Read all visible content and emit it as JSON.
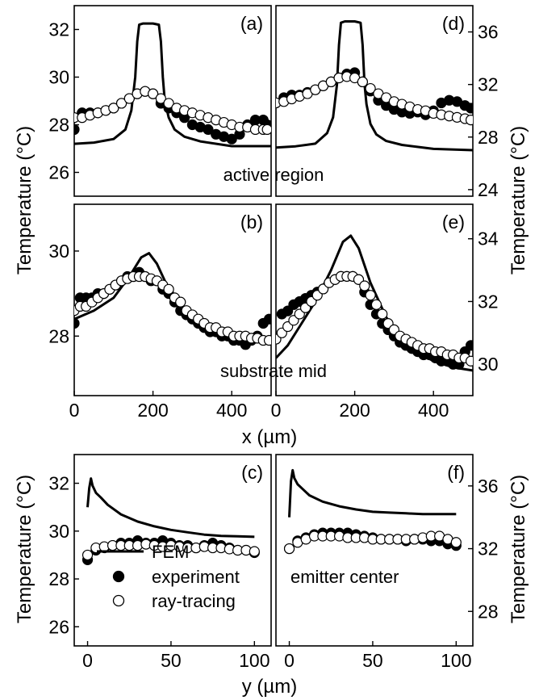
{
  "figure": {
    "x_title_top": "x (µm)",
    "x_title_bottom": "y (µm)",
    "y_title": "Temperature (°C)",
    "annotations": {
      "active_region": "active region",
      "substrate_mid": "substrate mid",
      "emitter_center": "emitter center"
    },
    "legend": {
      "fem": "FEM",
      "experiment": "experiment",
      "raytracing": "ray-tracing"
    }
  },
  "chart_data": [
    {
      "panel": "(a)",
      "type": "line",
      "xlim": [
        0,
        500
      ],
      "ylim": [
        25,
        33
      ],
      "y_ticks": [
        26,
        28,
        30,
        32
      ],
      "x_ticks": [],
      "grid": false,
      "series": [
        {
          "name": "FEM",
          "x": [
            0,
            50,
            100,
            130,
            145,
            155,
            160,
            165,
            175,
            200,
            215,
            220,
            225,
            230,
            240,
            255,
            280,
            320,
            400,
            500
          ],
          "y": [
            27.2,
            27.25,
            27.4,
            27.8,
            28.6,
            30.0,
            31.5,
            32.2,
            32.25,
            32.25,
            32.2,
            31.5,
            30.0,
            29.0,
            28.3,
            27.8,
            27.5,
            27.3,
            27.1,
            27.1
          ]
        },
        {
          "name": "experiment",
          "x": [
            0,
            20,
            40,
            60,
            80,
            100,
            120,
            140,
            160,
            180,
            200,
            220,
            240,
            260,
            280,
            300,
            320,
            340,
            360,
            380,
            400,
            420,
            440,
            460,
            480,
            490
          ],
          "y": [
            27.8,
            28.5,
            28.5,
            28.5,
            28.6,
            28.7,
            28.9,
            29.1,
            29.3,
            29.4,
            29.3,
            28.9,
            28.7,
            28.5,
            28.3,
            28.0,
            27.9,
            27.8,
            27.6,
            27.5,
            27.4,
            27.6,
            28.0,
            28.2,
            28.2,
            28.0
          ]
        },
        {
          "name": "ray-tracing",
          "x": [
            0,
            20,
            40,
            60,
            80,
            100,
            120,
            140,
            160,
            180,
            200,
            220,
            240,
            260,
            280,
            300,
            320,
            340,
            360,
            380,
            400,
            420,
            440,
            460,
            480,
            490
          ],
          "y": [
            28.3,
            28.3,
            28.4,
            28.5,
            28.6,
            28.7,
            28.9,
            29.1,
            29.3,
            29.4,
            29.3,
            29.1,
            28.9,
            28.7,
            28.6,
            28.5,
            28.4,
            28.3,
            28.2,
            28.1,
            28.0,
            27.9,
            27.9,
            27.8,
            27.8,
            27.8
          ]
        }
      ]
    },
    {
      "panel": "(d)",
      "type": "line",
      "xlim": [
        0,
        500
      ],
      "ylim": [
        23.5,
        38
      ],
      "y_ticks": [
        24,
        28,
        32,
        36
      ],
      "x_ticks": [],
      "grid": false,
      "series": [
        {
          "name": "FEM",
          "x": [
            0,
            50,
            100,
            130,
            145,
            155,
            160,
            165,
            175,
            200,
            215,
            220,
            225,
            230,
            240,
            255,
            280,
            320,
            400,
            500
          ],
          "y": [
            27.2,
            27.3,
            27.5,
            28.3,
            29.5,
            32.0,
            35.0,
            36.7,
            36.8,
            36.8,
            36.7,
            35.0,
            32.0,
            30.5,
            29.0,
            28.2,
            27.7,
            27.4,
            27.1,
            27.0
          ]
        },
        {
          "name": "experiment",
          "x": [
            0,
            20,
            40,
            60,
            80,
            100,
            120,
            140,
            160,
            180,
            200,
            220,
            240,
            260,
            280,
            300,
            320,
            340,
            360,
            380,
            400,
            420,
            440,
            460,
            480,
            495
          ],
          "y": [
            30.6,
            31.0,
            31.2,
            31.2,
            31.4,
            31.6,
            31.9,
            32.2,
            32.5,
            32.8,
            32.9,
            32.2,
            31.5,
            30.8,
            30.4,
            30.1,
            29.9,
            29.8,
            29.9,
            29.7,
            30.0,
            30.6,
            30.8,
            30.7,
            30.4,
            30.2
          ]
        },
        {
          "name": "ray-tracing",
          "x": [
            0,
            20,
            40,
            60,
            80,
            100,
            120,
            140,
            160,
            180,
            200,
            220,
            240,
            260,
            280,
            300,
            320,
            340,
            360,
            380,
            400,
            420,
            440,
            460,
            480,
            495
          ],
          "y": [
            30.6,
            30.7,
            30.9,
            31.1,
            31.3,
            31.6,
            31.9,
            32.2,
            32.5,
            32.6,
            32.5,
            32.2,
            31.7,
            31.3,
            31.0,
            30.7,
            30.5,
            30.3,
            30.1,
            30.0,
            29.8,
            29.7,
            29.6,
            29.5,
            29.4,
            29.3
          ]
        }
      ]
    },
    {
      "panel": "(b)",
      "type": "line",
      "xlim": [
        0,
        500
      ],
      "ylim": [
        26.6,
        31.1
      ],
      "y_ticks": [
        28,
        30
      ],
      "x_ticks": [
        0,
        200,
        400
      ],
      "x_tick_labels": [
        "0",
        "200",
        "400"
      ],
      "grid": false,
      "series": [
        {
          "name": "FEM",
          "x": [
            0,
            50,
            100,
            140,
            170,
            190,
            210,
            240,
            280,
            320,
            360,
            400,
            450,
            500
          ],
          "y": [
            28.4,
            28.6,
            28.9,
            29.4,
            29.85,
            29.95,
            29.7,
            29.1,
            28.6,
            28.3,
            28.1,
            28.0,
            27.95,
            27.9
          ]
        },
        {
          "name": "experiment",
          "x": [
            0,
            15,
            30,
            45,
            60,
            75,
            90,
            105,
            120,
            135,
            150,
            165,
            180,
            195,
            210,
            225,
            240,
            255,
            270,
            285,
            300,
            315,
            330,
            345,
            360,
            375,
            390,
            405,
            420,
            435,
            450,
            465,
            480,
            495
          ],
          "y": [
            28.3,
            28.9,
            28.9,
            28.9,
            29.0,
            29.0,
            29.1,
            29.2,
            29.3,
            29.4,
            29.4,
            29.5,
            29.4,
            29.3,
            29.3,
            29.1,
            29.0,
            28.8,
            28.6,
            28.5,
            28.4,
            28.3,
            28.2,
            28.1,
            28.1,
            28.0,
            28.0,
            27.9,
            27.9,
            27.8,
            27.9,
            28.0,
            28.3,
            28.4
          ]
        },
        {
          "name": "ray-tracing",
          "x": [
            0,
            15,
            30,
            45,
            60,
            75,
            90,
            105,
            120,
            135,
            150,
            165,
            180,
            195,
            210,
            225,
            240,
            255,
            270,
            285,
            300,
            315,
            330,
            345,
            360,
            375,
            390,
            405,
            420,
            435,
            450,
            465,
            480,
            495
          ],
          "y": [
            28.6,
            28.7,
            28.7,
            28.8,
            28.9,
            29.0,
            29.1,
            29.2,
            29.3,
            29.35,
            29.4,
            29.4,
            29.4,
            29.35,
            29.3,
            29.2,
            29.1,
            28.9,
            28.8,
            28.6,
            28.5,
            28.4,
            28.3,
            28.2,
            28.2,
            28.1,
            28.1,
            28.0,
            28.0,
            28.0,
            27.95,
            27.95,
            27.9,
            27.9
          ]
        }
      ]
    },
    {
      "panel": "(e)",
      "type": "line",
      "xlim": [
        0,
        500
      ],
      "ylim": [
        29,
        35.1
      ],
      "y_ticks": [
        30,
        32,
        34
      ],
      "x_ticks": [
        0,
        200,
        400
      ],
      "x_tick_labels": [
        "0",
        "200",
        "400"
      ],
      "grid": false,
      "series": [
        {
          "name": "FEM",
          "x": [
            0,
            30,
            60,
            100,
            140,
            170,
            190,
            210,
            240,
            280,
            320,
            360,
            400,
            450,
            500
          ],
          "y": [
            30.2,
            30.6,
            31.2,
            32.0,
            33.0,
            33.9,
            34.1,
            33.7,
            32.6,
            31.5,
            30.8,
            30.4,
            30.1,
            29.9,
            29.8
          ]
        },
        {
          "name": "experiment",
          "x": [
            0,
            15,
            30,
            45,
            60,
            75,
            90,
            105,
            120,
            135,
            150,
            165,
            180,
            195,
            210,
            225,
            240,
            255,
            270,
            285,
            300,
            315,
            330,
            345,
            360,
            375,
            390,
            405,
            420,
            435,
            450,
            465,
            480,
            495
          ],
          "y": [
            30.8,
            31.6,
            31.7,
            31.9,
            32.0,
            32.1,
            32.2,
            32.3,
            32.4,
            32.6,
            32.7,
            32.8,
            32.8,
            32.8,
            32.7,
            32.3,
            31.9,
            31.6,
            31.3,
            31.1,
            30.9,
            30.7,
            30.6,
            30.5,
            30.4,
            30.3,
            30.3,
            30.2,
            30.1,
            30.1,
            30.0,
            30.0,
            30.4,
            30.6
          ]
        },
        {
          "name": "ray-tracing",
          "x": [
            0,
            15,
            30,
            45,
            60,
            75,
            90,
            105,
            120,
            135,
            150,
            165,
            180,
            195,
            210,
            225,
            240,
            255,
            270,
            285,
            300,
            315,
            330,
            345,
            360,
            375,
            390,
            405,
            420,
            435,
            450,
            465,
            480,
            495
          ],
          "y": [
            30.8,
            31.0,
            31.2,
            31.4,
            31.6,
            31.8,
            32.0,
            32.2,
            32.4,
            32.6,
            32.7,
            32.8,
            32.8,
            32.8,
            32.7,
            32.5,
            32.2,
            31.9,
            31.6,
            31.3,
            31.1,
            30.9,
            30.8,
            30.7,
            30.6,
            30.5,
            30.5,
            30.4,
            30.4,
            30.3,
            30.3,
            30.2,
            30.2,
            30.1
          ]
        }
      ]
    },
    {
      "panel": "(c)",
      "type": "line",
      "xlim": [
        -8,
        110
      ],
      "ylim": [
        25.2,
        33.2
      ],
      "y_ticks": [
        26,
        28,
        30,
        32
      ],
      "x_ticks": [
        0,
        50,
        100
      ],
      "x_tick_labels": [
        "0",
        "50",
        "100"
      ],
      "grid": false,
      "series": [
        {
          "name": "FEM",
          "x": [
            0,
            1,
            2,
            3,
            5,
            8,
            12,
            20,
            30,
            40,
            50,
            60,
            70,
            80,
            90,
            100
          ],
          "y": [
            31.0,
            31.8,
            32.2,
            31.9,
            31.6,
            31.4,
            31.1,
            30.7,
            30.4,
            30.2,
            30.05,
            29.95,
            29.85,
            29.8,
            29.78,
            29.76
          ]
        },
        {
          "name": "experiment",
          "x": [
            0,
            5,
            10,
            15,
            20,
            25,
            30,
            35,
            40,
            45,
            50,
            55,
            60,
            65,
            70,
            75,
            80,
            85,
            90,
            95,
            100
          ],
          "y": [
            28.8,
            29.2,
            29.3,
            29.4,
            29.5,
            29.5,
            29.6,
            29.5,
            29.5,
            29.6,
            29.5,
            29.4,
            29.4,
            29.3,
            29.4,
            29.5,
            29.4,
            29.3,
            29.2,
            29.2,
            29.1
          ]
        },
        {
          "name": "ray-tracing",
          "x": [
            0,
            5,
            10,
            15,
            20,
            25,
            30,
            35,
            40,
            45,
            50,
            55,
            60,
            65,
            70,
            75,
            80,
            85,
            90,
            95,
            100
          ],
          "y": [
            29.0,
            29.3,
            29.35,
            29.4,
            29.4,
            29.4,
            29.4,
            29.45,
            29.4,
            29.35,
            29.4,
            29.35,
            29.3,
            29.3,
            29.35,
            29.3,
            29.3,
            29.25,
            29.2,
            29.2,
            29.15
          ]
        }
      ]
    },
    {
      "panel": "(f)",
      "type": "line",
      "xlim": [
        -8,
        110
      ],
      "ylim": [
        25.8,
        38
      ],
      "y_ticks": [
        28,
        32,
        36
      ],
      "x_ticks": [
        0,
        50,
        100
      ],
      "x_tick_labels": [
        "0",
        "50",
        "100"
      ],
      "grid": false,
      "series": [
        {
          "name": "FEM",
          "x": [
            0,
            1,
            2,
            3,
            5,
            8,
            12,
            20,
            30,
            40,
            50,
            60,
            70,
            80,
            90,
            100
          ],
          "y": [
            34.0,
            36.3,
            37.0,
            36.5,
            36.1,
            35.8,
            35.4,
            35.0,
            34.7,
            34.5,
            34.35,
            34.3,
            34.25,
            34.2,
            34.2,
            34.2
          ]
        },
        {
          "name": "experiment",
          "x": [
            0,
            5,
            10,
            15,
            20,
            25,
            30,
            35,
            40,
            45,
            50,
            55,
            60,
            65,
            70,
            75,
            80,
            85,
            90,
            95,
            100
          ],
          "y": [
            32.0,
            32.5,
            32.7,
            32.9,
            33.0,
            33.0,
            33.0,
            33.0,
            32.9,
            32.8,
            32.7,
            32.6,
            32.6,
            32.6,
            32.5,
            32.6,
            32.6,
            32.5,
            32.5,
            32.3,
            32.2
          ]
        },
        {
          "name": "ray-tracing",
          "x": [
            0,
            5,
            10,
            15,
            20,
            25,
            30,
            35,
            40,
            45,
            50,
            55,
            60,
            65,
            70,
            75,
            80,
            85,
            90,
            95,
            100
          ],
          "y": [
            32.0,
            32.4,
            32.6,
            32.8,
            32.8,
            32.8,
            32.8,
            32.7,
            32.7,
            32.7,
            32.6,
            32.6,
            32.6,
            32.6,
            32.6,
            32.6,
            32.7,
            32.8,
            32.8,
            32.6,
            32.4
          ]
        }
      ]
    }
  ]
}
